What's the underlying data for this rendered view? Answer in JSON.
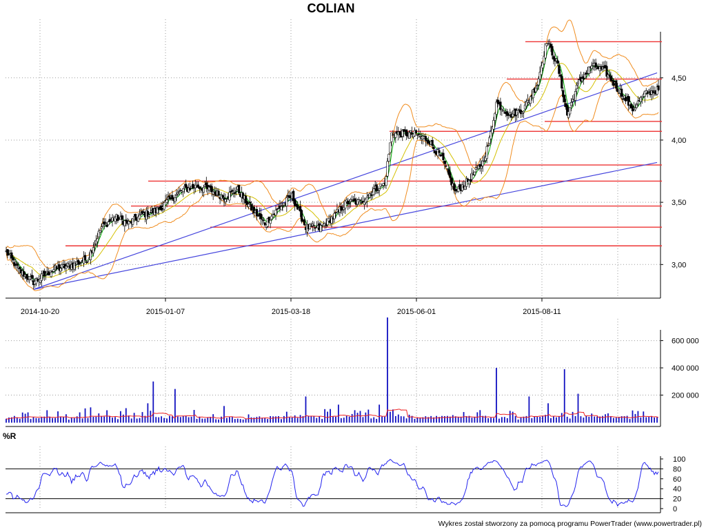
{
  "chart_data": [
    {
      "type": "candlestick",
      "title": "COLIAN",
      "x_tick_labels": [
        "2014-10-20",
        "2015-01-07",
        "2015-03-18",
        "2015-06-01",
        "2015-08-11"
      ],
      "y_tick_labels": [
        "3,00",
        "3,50",
        "4,00",
        "4,50"
      ],
      "ylim": [
        2.73,
        4.97
      ],
      "grid": true,
      "overlays": [
        "bollinger bands",
        "moving average",
        "support/resistance lines",
        "trend lines"
      ],
      "close_keypoints": [
        {
          "t": 0,
          "v": 3.1
        },
        {
          "t": 10,
          "v": 2.95
        },
        {
          "t": 20,
          "v": 2.86
        },
        {
          "t": 35,
          "v": 2.96
        },
        {
          "t": 50,
          "v": 3.0
        },
        {
          "t": 60,
          "v": 3.05
        },
        {
          "t": 70,
          "v": 3.3
        },
        {
          "t": 80,
          "v": 3.38
        },
        {
          "t": 90,
          "v": 3.33
        },
        {
          "t": 100,
          "v": 3.4
        },
        {
          "t": 110,
          "v": 3.43
        },
        {
          "t": 120,
          "v": 3.52
        },
        {
          "t": 130,
          "v": 3.6
        },
        {
          "t": 140,
          "v": 3.63
        },
        {
          "t": 150,
          "v": 3.6
        },
        {
          "t": 160,
          "v": 3.54
        },
        {
          "t": 170,
          "v": 3.6
        },
        {
          "t": 180,
          "v": 3.45
        },
        {
          "t": 190,
          "v": 3.33
        },
        {
          "t": 200,
          "v": 3.45
        },
        {
          "t": 210,
          "v": 3.55
        },
        {
          "t": 220,
          "v": 3.3
        },
        {
          "t": 230,
          "v": 3.29
        },
        {
          "t": 240,
          "v": 3.38
        },
        {
          "t": 250,
          "v": 3.5
        },
        {
          "t": 260,
          "v": 3.5
        },
        {
          "t": 270,
          "v": 3.6
        },
        {
          "t": 278,
          "v": 3.65
        },
        {
          "t": 283,
          "v": 4.05
        },
        {
          "t": 290,
          "v": 4.05
        },
        {
          "t": 300,
          "v": 4.05
        },
        {
          "t": 310,
          "v": 4.0
        },
        {
          "t": 320,
          "v": 3.85
        },
        {
          "t": 330,
          "v": 3.58
        },
        {
          "t": 340,
          "v": 3.68
        },
        {
          "t": 350,
          "v": 3.82
        },
        {
          "t": 355,
          "v": 4.0
        },
        {
          "t": 360,
          "v": 4.3
        },
        {
          "t": 370,
          "v": 4.2
        },
        {
          "t": 380,
          "v": 4.25
        },
        {
          "t": 390,
          "v": 4.45
        },
        {
          "t": 397,
          "v": 4.8
        },
        {
          "t": 405,
          "v": 4.6
        },
        {
          "t": 412,
          "v": 4.2
        },
        {
          "t": 420,
          "v": 4.45
        },
        {
          "t": 430,
          "v": 4.6
        },
        {
          "t": 440,
          "v": 4.55
        },
        {
          "t": 450,
          "v": 4.4
        },
        {
          "t": 460,
          "v": 4.25
        },
        {
          "t": 470,
          "v": 4.38
        },
        {
          "t": 478,
          "v": 4.4
        }
      ],
      "horizontal_lines": [
        3.15,
        3.3,
        3.47,
        3.67,
        3.8,
        4.07,
        4.15,
        4.49,
        4.79
      ],
      "trend_lines": [
        {
          "from": {
            "t": 20,
            "v": 2.8
          },
          "to": {
            "t": 478,
            "v": 4.54
          }
        },
        {
          "from": {
            "t": 20,
            "v": 2.8
          },
          "to": {
            "t": 478,
            "v": 3.82
          }
        }
      ]
    },
    {
      "type": "bar",
      "name": "volume",
      "y_tick_labels": [
        "200 000",
        "400 000",
        "600 000"
      ],
      "ylim": [
        0,
        760000
      ],
      "base_level": 18000,
      "spikes": [
        {
          "t": 108,
          "v": 300000
        },
        {
          "t": 125,
          "v": 245000
        },
        {
          "t": 104,
          "v": 140000
        },
        {
          "t": 220,
          "v": 190000
        },
        {
          "t": 280,
          "v": 770000
        },
        {
          "t": 275,
          "v": 130000
        },
        {
          "t": 360,
          "v": 400000
        },
        {
          "t": 385,
          "v": 190000
        },
        {
          "t": 410,
          "v": 390000
        },
        {
          "t": 420,
          "v": 210000
        },
        {
          "t": 398,
          "v": 140000
        },
        {
          "t": 62,
          "v": 110000
        },
        {
          "t": 160,
          "v": 120000
        },
        {
          "t": 245,
          "v": 130000
        }
      ],
      "moving_average": true
    },
    {
      "type": "line",
      "title": "%R",
      "y_tick_labels": [
        "0",
        "20",
        "40",
        "60",
        "80",
        "100"
      ],
      "ylim": [
        0,
        100
      ],
      "reference_lines": [
        20,
        80
      ]
    }
  ],
  "footer": "Wykres został stworzony za pomocą programu PowerTrader (www.powertrader.pl)",
  "colors": {
    "candle": "#000000",
    "bollinger": "#f08c1e",
    "ma_short": "#00aa00",
    "ma_long": "#d4c000",
    "sr_line": "#ee3333",
    "trend_line": "#4444dd",
    "volume_bar": "#1010c0",
    "volume_ma": "#ee2222",
    "williams": "#2222ee"
  }
}
